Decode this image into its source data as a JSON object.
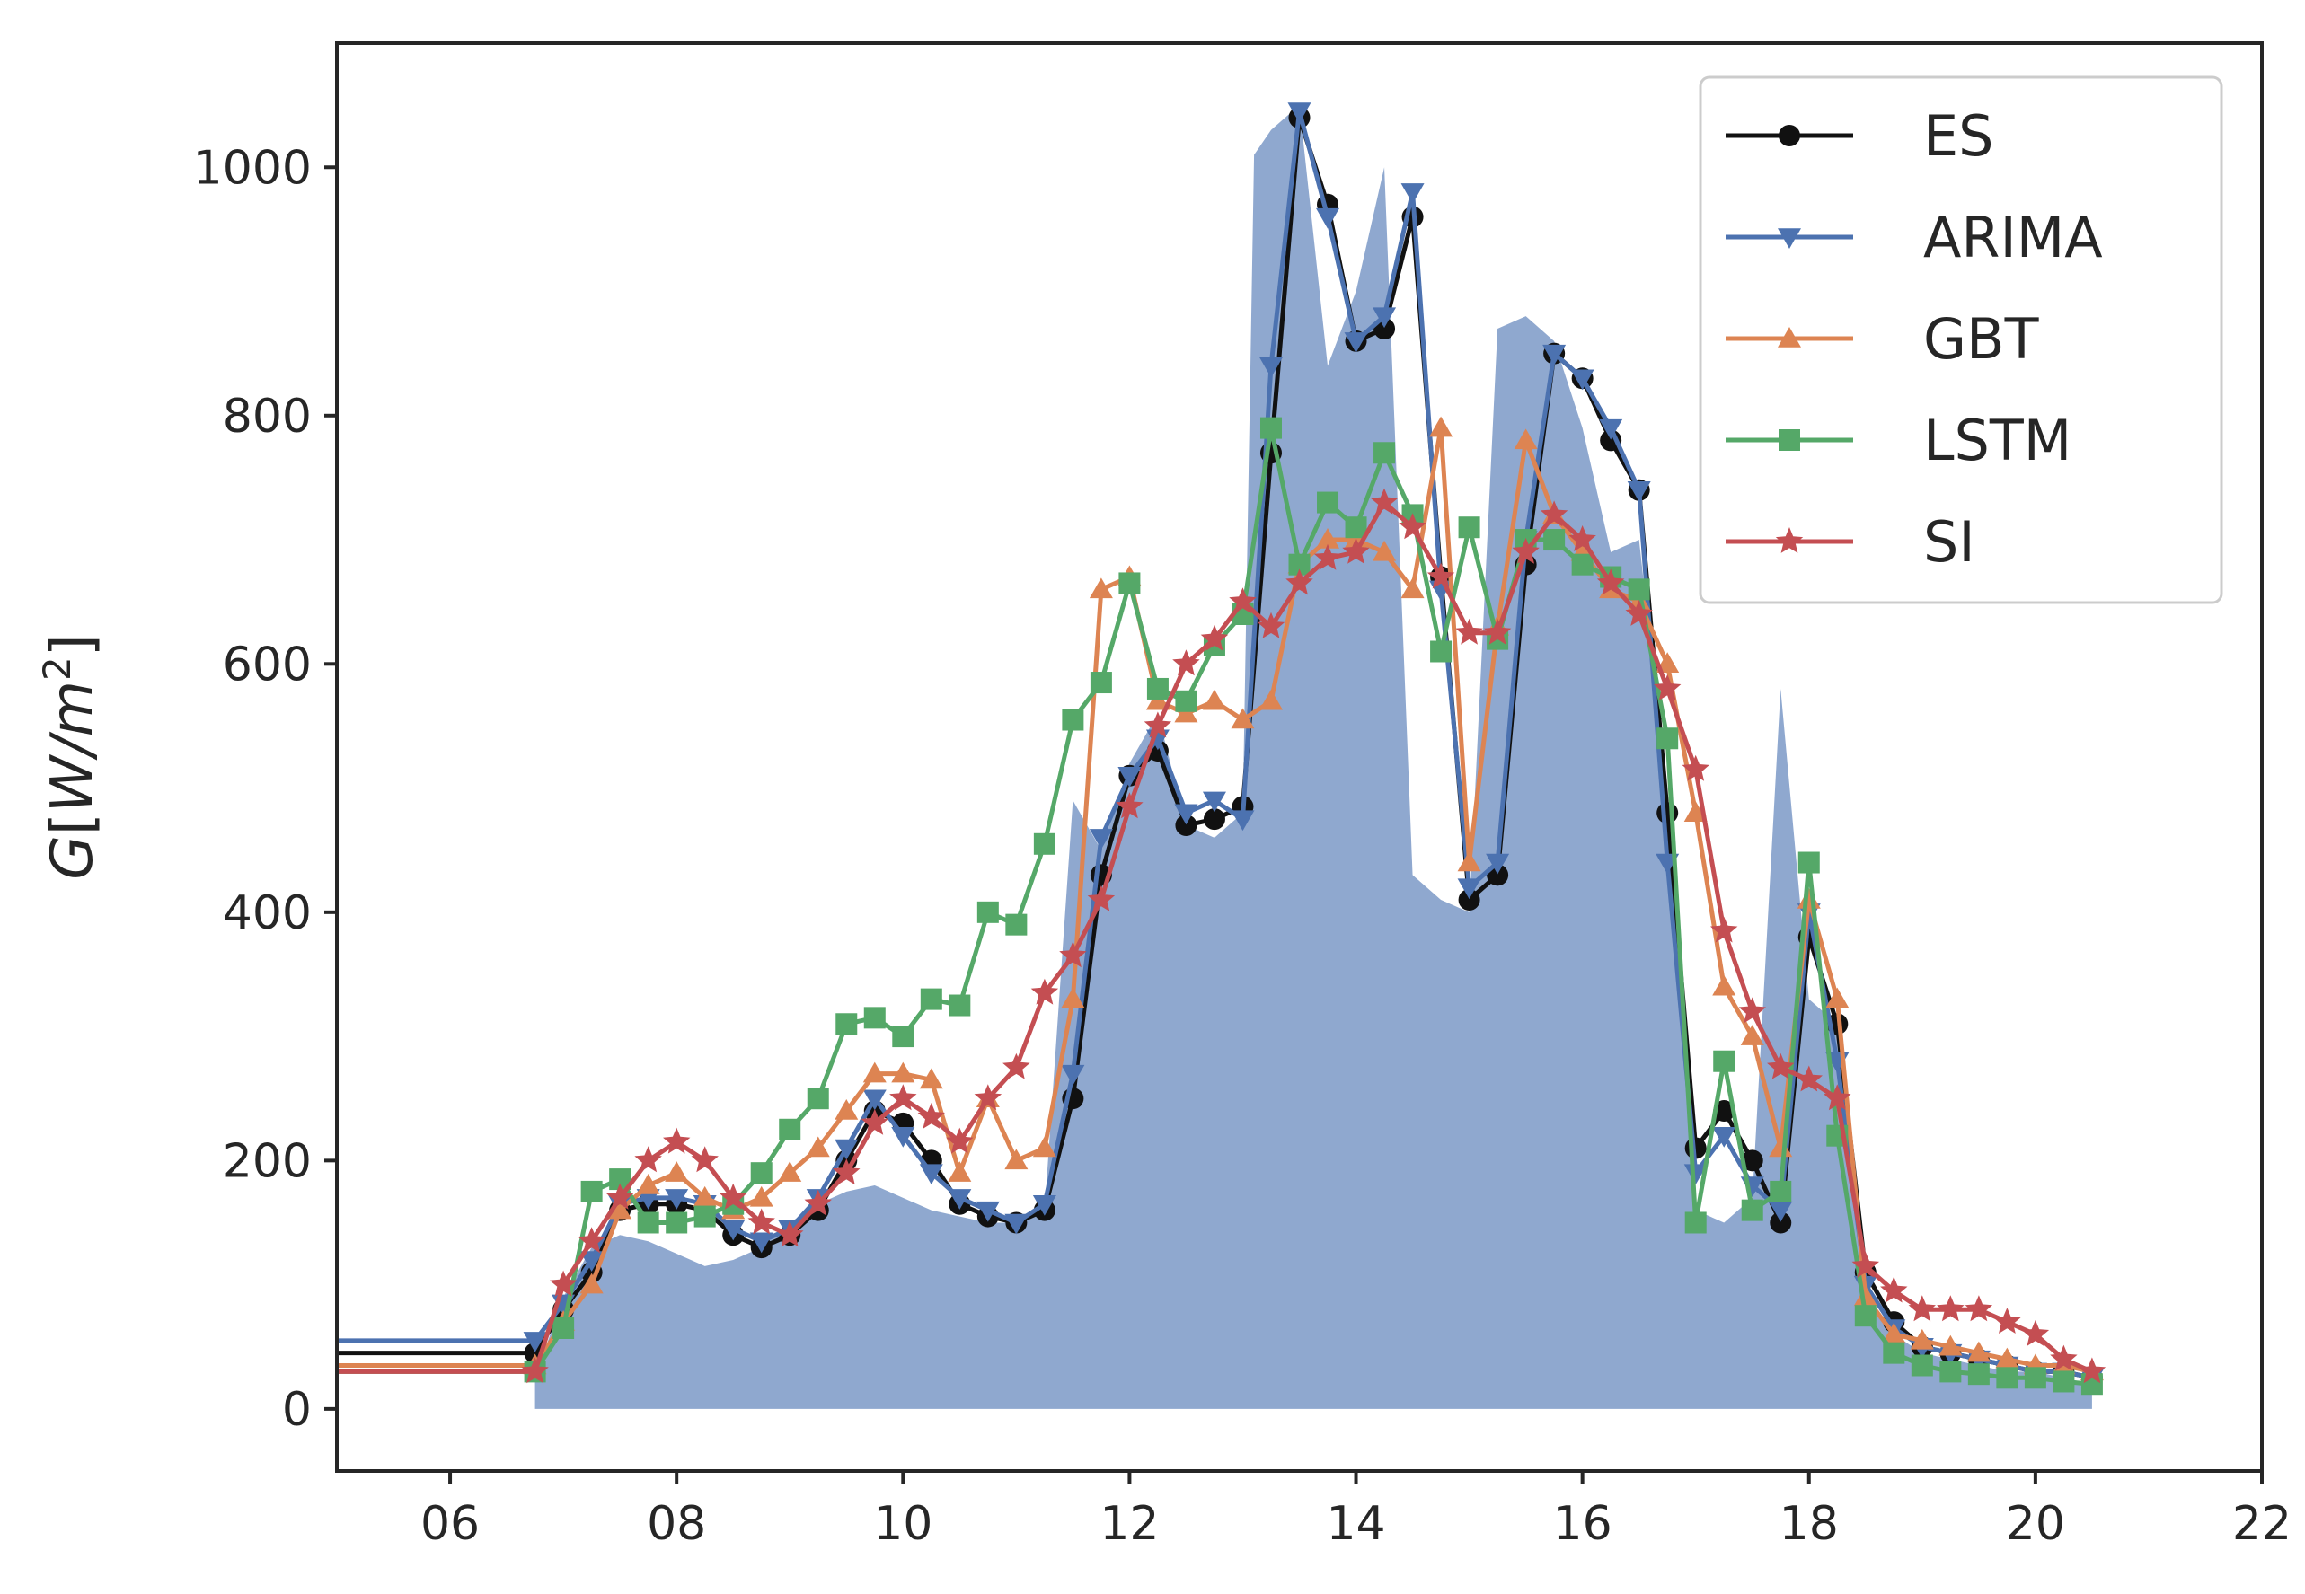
{
  "chart_data": {
    "type": "line",
    "title": "",
    "xlabel": "",
    "ylabel_main": "G",
    "ylabel_unit_open": "[",
    "ylabel_unit": "W/m",
    "ylabel_exp": "2",
    "ylabel_unit_close": "]",
    "xlim": [
      5,
      22
    ],
    "ylim": [
      -50,
      1100
    ],
    "x_ticks": [
      6,
      8,
      10,
      12,
      14,
      16,
      18,
      20,
      22
    ],
    "x_tick_labels": [
      "06",
      "08",
      "10",
      "12",
      "14",
      "16",
      "18",
      "20",
      "22"
    ],
    "y_ticks": [
      0,
      200,
      400,
      600,
      800,
      1000
    ],
    "y_tick_labels": [
      "0",
      "200",
      "400",
      "600",
      "800",
      "1000"
    ],
    "legend_position": "top-right",
    "area": {
      "color": "#8fa8cf",
      "x": [
        6.75,
        7.0,
        7.25,
        7.5,
        7.75,
        8.0,
        8.25,
        8.5,
        8.75,
        9.0,
        9.25,
        9.5,
        9.75,
        10.0,
        10.25,
        10.5,
        10.75,
        11.0,
        11.25,
        11.5,
        11.75,
        12.0,
        12.25,
        12.5,
        12.75,
        13.0,
        13.1,
        13.25,
        13.5,
        13.75,
        14.0,
        14.25,
        14.5,
        14.75,
        15.0,
        15.25,
        15.5,
        15.75,
        16.0,
        16.25,
        16.5,
        16.75,
        17.0,
        17.25,
        17.5,
        17.75,
        18.0,
        18.25,
        18.5,
        18.75,
        19.0,
        19.25,
        19.5,
        19.75,
        20.0,
        20.25,
        20.5
      ],
      "values": [
        25,
        90,
        130,
        140,
        135,
        125,
        115,
        120,
        130,
        150,
        165,
        175,
        180,
        170,
        160,
        155,
        150,
        150,
        160,
        490,
        450,
        520,
        560,
        470,
        460,
        480,
        1010,
        1030,
        1050,
        840,
        900,
        1000,
        430,
        410,
        400,
        870,
        880,
        860,
        790,
        690,
        700,
        490,
        160,
        150,
        170,
        580,
        330,
        310,
        90,
        60,
        45,
        40,
        35,
        30,
        30,
        25,
        20
      ]
    },
    "series": [
      {
        "name": "ES",
        "color": "#111111",
        "marker": "circle",
        "step_start": 5,
        "x": [
          6.75,
          7.0,
          7.25,
          7.5,
          7.75,
          8.0,
          8.25,
          8.5,
          8.75,
          9.0,
          9.25,
          9.5,
          9.75,
          10.0,
          10.25,
          10.5,
          10.75,
          11.0,
          11.25,
          11.5,
          11.75,
          12.0,
          12.25,
          12.5,
          12.75,
          13.0,
          13.25,
          13.5,
          13.75,
          14.0,
          14.25,
          14.5,
          14.75,
          15.0,
          15.25,
          15.5,
          15.75,
          16.0,
          16.25,
          16.5,
          16.75,
          17.0,
          17.25,
          17.5,
          17.75,
          18.0,
          18.25,
          18.5,
          18.75,
          19.0,
          19.25,
          19.5,
          19.75,
          20.0,
          20.25,
          20.5
        ],
        "values": [
          45,
          80,
          110,
          160,
          165,
          165,
          160,
          140,
          130,
          140,
          160,
          200,
          240,
          230,
          200,
          165,
          155,
          150,
          160,
          250,
          430,
          510,
          530,
          470,
          475,
          485,
          770,
          1040,
          970,
          860,
          870,
          960,
          670,
          410,
          430,
          680,
          850,
          830,
          780,
          740,
          480,
          210,
          240,
          200,
          150,
          380,
          310,
          110,
          70,
          50,
          45,
          40,
          35,
          30,
          30,
          25
        ]
      },
      {
        "name": "ARIMA",
        "color": "#4c72b0",
        "marker": "triangle-down",
        "step_start": 5,
        "x": [
          6.75,
          7.0,
          7.25,
          7.5,
          7.75,
          8.0,
          8.25,
          8.5,
          8.75,
          9.0,
          9.25,
          9.5,
          9.75,
          10.0,
          10.25,
          10.5,
          10.75,
          11.0,
          11.25,
          11.5,
          11.75,
          12.0,
          12.25,
          12.5,
          12.75,
          13.0,
          13.25,
          13.5,
          13.75,
          14.0,
          14.25,
          14.5,
          14.75,
          15.0,
          15.25,
          15.5,
          15.75,
          16.0,
          16.25,
          16.5,
          16.75,
          17.0,
          17.25,
          17.5,
          17.75,
          18.0,
          18.25,
          18.5,
          18.75,
          19.0,
          19.25,
          19.5,
          19.75,
          20.0,
          20.25,
          20.5
        ],
        "values": [
          55,
          85,
          120,
          165,
          170,
          170,
          165,
          145,
          135,
          145,
          170,
          210,
          250,
          220,
          190,
          170,
          160,
          150,
          165,
          270,
          460,
          510,
          540,
          480,
          490,
          475,
          840,
          1045,
          960,
          860,
          880,
          980,
          660,
          420,
          440,
          700,
          850,
          830,
          790,
          740,
          440,
          190,
          220,
          180,
          160,
          400,
          280,
          100,
          65,
          50,
          45,
          40,
          35,
          30,
          30,
          25
        ]
      },
      {
        "name": "GBT",
        "color": "#dd8452",
        "marker": "triangle-up",
        "step_start": 5,
        "x": [
          6.75,
          7.0,
          7.25,
          7.5,
          7.75,
          8.0,
          8.25,
          8.5,
          8.75,
          9.0,
          9.25,
          9.5,
          9.75,
          10.0,
          10.25,
          10.5,
          10.75,
          11.0,
          11.25,
          11.5,
          11.75,
          12.0,
          12.25,
          12.5,
          12.75,
          13.0,
          13.25,
          13.5,
          13.75,
          14.0,
          14.25,
          14.5,
          14.75,
          15.0,
          15.25,
          15.5,
          15.75,
          16.0,
          16.25,
          16.5,
          16.75,
          17.0,
          17.25,
          17.5,
          17.75,
          18.0,
          18.25,
          18.5,
          18.75,
          19.0,
          19.25,
          19.5,
          19.75,
          20.0,
          20.25,
          20.5
        ],
        "values": [
          35,
          70,
          100,
          160,
          180,
          190,
          170,
          160,
          170,
          190,
          210,
          240,
          270,
          270,
          265,
          190,
          250,
          200,
          210,
          330,
          660,
          670,
          570,
          560,
          570,
          555,
          570,
          680,
          700,
          700,
          690,
          660,
          790,
          440,
          630,
          780,
          720,
          690,
          660,
          650,
          600,
          480,
          340,
          300,
          210,
          410,
          330,
          90,
          60,
          55,
          50,
          45,
          40,
          35,
          35,
          30
        ]
      },
      {
        "name": "LSTM",
        "color": "#55a868",
        "marker": "square",
        "step_start": 5,
        "x": [
          6.75,
          7.0,
          7.25,
          7.5,
          7.75,
          8.0,
          8.25,
          8.5,
          8.75,
          9.0,
          9.25,
          9.5,
          9.75,
          10.0,
          10.25,
          10.5,
          10.75,
          11.0,
          11.25,
          11.5,
          11.75,
          12.0,
          12.25,
          12.5,
          12.75,
          13.0,
          13.25,
          13.5,
          13.75,
          14.0,
          14.25,
          14.5,
          14.75,
          15.0,
          15.25,
          15.5,
          15.75,
          16.0,
          16.25,
          16.5,
          16.75,
          17.0,
          17.25,
          17.5,
          17.75,
          18.0,
          18.25,
          18.5,
          18.75,
          19.0,
          19.25,
          19.5,
          19.75,
          20.0,
          20.25,
          20.5
        ],
        "values": [
          30,
          65,
          175,
          185,
          150,
          150,
          155,
          165,
          190,
          225,
          250,
          310,
          315,
          300,
          330,
          325,
          400,
          390,
          455,
          555,
          585,
          665,
          580,
          570,
          615,
          640,
          790,
          680,
          730,
          710,
          770,
          720,
          610,
          710,
          620,
          700,
          700,
          680,
          670,
          660,
          540,
          150,
          280,
          160,
          175,
          440,
          220,
          75,
          45,
          35,
          30,
          28,
          25,
          25,
          22,
          20
        ]
      },
      {
        "name": "SI",
        "color": "#c44e52",
        "marker": "star",
        "step_start": 5,
        "x": [
          6.75,
          7.0,
          7.25,
          7.5,
          7.75,
          8.0,
          8.25,
          8.5,
          8.75,
          9.0,
          9.25,
          9.5,
          9.75,
          10.0,
          10.25,
          10.5,
          10.75,
          11.0,
          11.25,
          11.5,
          11.75,
          12.0,
          12.25,
          12.5,
          12.75,
          13.0,
          13.25,
          13.5,
          13.75,
          14.0,
          14.25,
          14.5,
          14.75,
          15.0,
          15.25,
          15.5,
          15.75,
          16.0,
          16.25,
          16.5,
          16.75,
          17.0,
          17.25,
          17.5,
          17.75,
          18.0,
          18.25,
          18.5,
          18.75,
          19.0,
          19.25,
          19.5,
          19.75,
          20.0,
          20.25,
          20.5
        ],
        "values": [
          30,
          100,
          135,
          170,
          200,
          215,
          200,
          170,
          150,
          140,
          165,
          190,
          230,
          250,
          235,
          215,
          250,
          275,
          335,
          365,
          410,
          485,
          550,
          600,
          620,
          650,
          630,
          665,
          685,
          690,
          730,
          710,
          670,
          625,
          625,
          690,
          720,
          700,
          665,
          640,
          580,
          515,
          385,
          320,
          275,
          265,
          250,
          115,
          95,
          80,
          80,
          80,
          70,
          60,
          40,
          30
        ]
      }
    ]
  }
}
